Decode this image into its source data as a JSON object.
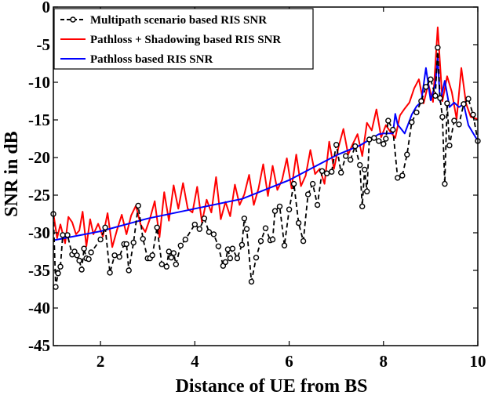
{
  "chart_data": {
    "type": "line",
    "title": "",
    "xlabel": "Distance of UE from BS",
    "ylabel": "SNR in dB",
    "xlim": [
      1,
      10
    ],
    "ylim": [
      -45,
      0
    ],
    "xticks": [
      2,
      4,
      6,
      8,
      10
    ],
    "yticks": [
      -45,
      -40,
      -35,
      -30,
      -25,
      -20,
      -15,
      -10,
      -5,
      0
    ],
    "legend_position": "top-left",
    "series": [
      {
        "name": "Multipath scenario based RIS SNR",
        "color": "#000000",
        "style": "dashed-circle",
        "x": [
          1.0,
          1.05,
          1.1,
          1.15,
          1.2,
          1.3,
          1.4,
          1.45,
          1.5,
          1.55,
          1.6,
          1.65,
          1.7,
          1.75,
          1.8,
          2.0,
          2.1,
          2.2,
          2.3,
          2.4,
          2.5,
          2.55,
          2.6,
          2.7,
          2.8,
          2.9,
          3.0,
          3.05,
          3.1,
          3.2,
          3.3,
          3.4,
          3.45,
          3.5,
          3.55,
          3.6,
          3.7,
          3.8,
          4.0,
          4.1,
          4.2,
          4.3,
          4.4,
          4.5,
          4.6,
          4.65,
          4.7,
          4.75,
          4.8,
          4.9,
          5.0,
          5.05,
          5.1,
          5.2,
          5.3,
          5.4,
          5.5,
          5.6,
          5.65,
          5.7,
          5.8,
          5.9,
          6.0,
          6.1,
          6.2,
          6.3,
          6.4,
          6.5,
          6.6,
          6.7,
          6.8,
          6.9,
          7.0,
          7.1,
          7.2,
          7.3,
          7.4,
          7.5,
          7.55,
          7.6,
          7.65,
          7.7,
          7.8,
          7.9,
          8.0,
          8.05,
          8.1,
          8.2,
          8.3,
          8.4,
          8.5,
          8.6,
          8.7,
          8.8,
          8.9,
          9.0,
          9.1,
          9.15,
          9.2,
          9.25,
          9.3,
          9.35,
          9.4,
          9.5,
          9.6,
          9.7,
          9.8,
          9.9,
          10.0
        ],
        "y": [
          -27.5,
          -37.2,
          -35.4,
          -34.5,
          -30.3,
          -30.3,
          -32.9,
          -32.5,
          -33.0,
          -33.7,
          -34.9,
          -32.1,
          -33.4,
          -33.5,
          -32.6,
          -30.9,
          -29.3,
          -35.3,
          -33.0,
          -33.2,
          -31.5,
          -31.5,
          -35.0,
          -31.3,
          -26.4,
          -30.8,
          -33.4,
          -33.4,
          -33.0,
          -29.3,
          -34.2,
          -34.5,
          -32.5,
          -33.3,
          -32.7,
          -34.2,
          -31.7,
          -30.9,
          -28.9,
          -29.5,
          -28.1,
          -29.9,
          -30.2,
          -31.8,
          -34.4,
          -33.9,
          -32.2,
          -33.4,
          -32.1,
          -33.4,
          -31.6,
          -28.1,
          -29.5,
          -36.5,
          -33.3,
          -31.1,
          -29.4,
          -31.0,
          -30.9,
          -27.1,
          -26.5,
          -31.7,
          -26.9,
          -23.5,
          -28.7,
          -31.1,
          -24.9,
          -23.5,
          -26.3,
          -21.8,
          -22.1,
          -21.9,
          -18.3,
          -22.0,
          -19.8,
          -20.3,
          -18.5,
          -21.0,
          -26.5,
          -21.6,
          -24.5,
          -17.6,
          -17.4,
          -17.8,
          -18.2,
          -17.5,
          -15.1,
          -16.3,
          -22.7,
          -22.4,
          -19.6,
          -15.3,
          -14.0,
          -12.5,
          -10.6,
          -9.6,
          -11.8,
          -5.4,
          -12.1,
          -14.6,
          -23.5,
          -12.8,
          -18.4,
          -15.1,
          -15.6,
          -12.9,
          -12.2,
          -14.3,
          -17.8
        ]
      },
      {
        "name": "Pathloss + Shadowing based RIS SNR",
        "color": "#ff0000",
        "style": "solid",
        "x": [
          1.0,
          1.08,
          1.15,
          1.25,
          1.32,
          1.4,
          1.48,
          1.55,
          1.62,
          1.7,
          1.78,
          1.85,
          1.95,
          2.05,
          2.15,
          2.25,
          2.35,
          2.45,
          2.55,
          2.65,
          2.75,
          2.85,
          2.95,
          3.05,
          3.15,
          3.25,
          3.35,
          3.45,
          3.55,
          3.65,
          3.75,
          3.85,
          3.95,
          4.05,
          4.15,
          4.25,
          4.35,
          4.45,
          4.55,
          4.65,
          4.75,
          4.85,
          4.95,
          5.05,
          5.15,
          5.25,
          5.35,
          5.45,
          5.55,
          5.65,
          5.75,
          5.85,
          5.95,
          6.05,
          6.15,
          6.25,
          6.35,
          6.45,
          6.55,
          6.65,
          6.75,
          6.85,
          6.95,
          7.05,
          7.15,
          7.25,
          7.35,
          7.45,
          7.55,
          7.65,
          7.75,
          7.85,
          7.95,
          8.05,
          8.15,
          8.25,
          8.35,
          8.45,
          8.55,
          8.65,
          8.75,
          8.85,
          8.95,
          9.05,
          9.15,
          9.25,
          9.35,
          9.45,
          9.55,
          9.65,
          9.75,
          9.85,
          10.0
        ],
        "y": [
          -27.4,
          -30.7,
          -28.9,
          -31.4,
          -27.9,
          -28.6,
          -30.2,
          -29.7,
          -27.2,
          -31.8,
          -28.2,
          -30.2,
          -28.8,
          -30.5,
          -27.4,
          -31.9,
          -29.6,
          -27.6,
          -30.2,
          -27.7,
          -26.4,
          -28.9,
          -29.9,
          -28.1,
          -25.8,
          -30.6,
          -24.6,
          -28.4,
          -23.7,
          -26.8,
          -23.4,
          -26.8,
          -27.3,
          -23.9,
          -28.6,
          -25.6,
          -27.3,
          -22.6,
          -28.2,
          -25.9,
          -27.8,
          -23.6,
          -26.3,
          -24.9,
          -22.3,
          -26.3,
          -24.1,
          -20.9,
          -25.1,
          -21.1,
          -24.3,
          -23.0,
          -20.1,
          -24.1,
          -19.6,
          -23.8,
          -22.4,
          -19.0,
          -22.2,
          -21.5,
          -23.5,
          -17.9,
          -21.5,
          -18.5,
          -16.2,
          -19.6,
          -18.2,
          -16.9,
          -19.8,
          -15.4,
          -16.4,
          -13.6,
          -17.3,
          -15.7,
          -16.6,
          -17.4,
          -14.4,
          -13.5,
          -12.7,
          -10.8,
          -9.6,
          -12.8,
          -10.2,
          -12.6,
          -2.7,
          -12.5,
          -9.2,
          -11.3,
          -14.9,
          -8.1,
          -12.8,
          -14.6,
          -14.9
        ]
      },
      {
        "name": "Pathloss based RIS SNR",
        "color": "#0000ff",
        "style": "solid",
        "x": [
          1.0,
          2.0,
          3.0,
          4.0,
          5.0,
          6.0,
          7.0,
          7.5,
          7.9,
          8.0,
          8.2,
          8.25,
          8.3,
          8.45,
          8.6,
          8.7,
          8.8,
          8.9,
          9.0,
          9.1,
          9.15,
          9.2,
          9.3,
          9.4,
          9.5,
          9.6,
          9.7,
          9.8,
          10.0
        ],
        "y": [
          -31.0,
          -29.8,
          -28.1,
          -26.8,
          -25.5,
          -23.0,
          -19.7,
          -18.4,
          -16.9,
          -16.8,
          -16.8,
          -14.2,
          -15.6,
          -16.8,
          -14.3,
          -13.2,
          -12.6,
          -8.1,
          -12.4,
          -10.2,
          -6.7,
          -12.6,
          -9.8,
          -13.3,
          -12.7,
          -13.3,
          -12.9,
          -15.7,
          -17.8
        ]
      }
    ]
  }
}
